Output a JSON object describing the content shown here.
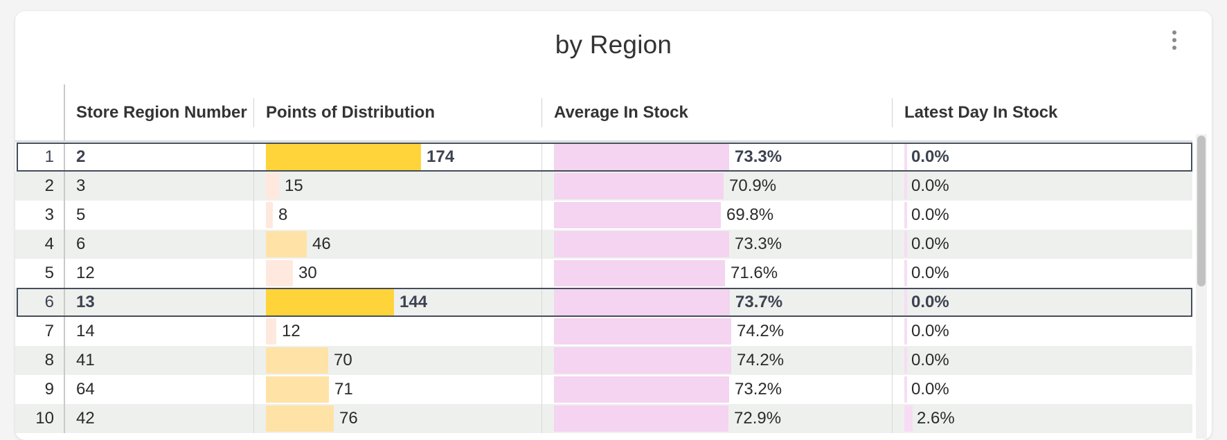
{
  "title": "by Region",
  "columns": {
    "region": "Store Region Number",
    "pod": "Points of Distribution",
    "avg": "Average In Stock",
    "latest": "Latest Day In Stock"
  },
  "colors": {
    "pod_high": "#ffd43b",
    "pod_mid": "#ffe2a6",
    "pod_low": "#ffe9df",
    "avg_bar": "#f4d4f0",
    "latest_bar": "#f8dcf4",
    "row_alt": "#eef0ee",
    "selection_border": "#454d59"
  },
  "rows": [
    {
      "index": "1",
      "region": "2",
      "pod": "174",
      "pod_value": 174,
      "avg": "73.3%",
      "avg_value": 73.3,
      "latest": "0.0%",
      "latest_value": 0.0,
      "selected": true
    },
    {
      "index": "2",
      "region": "3",
      "pod": "15",
      "pod_value": 15,
      "avg": "70.9%",
      "avg_value": 70.9,
      "latest": "0.0%",
      "latest_value": 0.0
    },
    {
      "index": "3",
      "region": "5",
      "pod": "8",
      "pod_value": 8,
      "avg": "69.8%",
      "avg_value": 69.8,
      "latest": "0.0%",
      "latest_value": 0.0
    },
    {
      "index": "4",
      "region": "6",
      "pod": "46",
      "pod_value": 46,
      "avg": "73.3%",
      "avg_value": 73.3,
      "latest": "0.0%",
      "latest_value": 0.0
    },
    {
      "index": "5",
      "region": "12",
      "pod": "30",
      "pod_value": 30,
      "avg": "71.6%",
      "avg_value": 71.6,
      "latest": "0.0%",
      "latest_value": 0.0
    },
    {
      "index": "6",
      "region": "13",
      "pod": "144",
      "pod_value": 144,
      "avg": "73.7%",
      "avg_value": 73.7,
      "latest": "0.0%",
      "latest_value": 0.0,
      "selected": true
    },
    {
      "index": "7",
      "region": "14",
      "pod": "12",
      "pod_value": 12,
      "avg": "74.2%",
      "avg_value": 74.2,
      "latest": "0.0%",
      "latest_value": 0.0
    },
    {
      "index": "8",
      "region": "41",
      "pod": "70",
      "pod_value": 70,
      "avg": "74.2%",
      "avg_value": 74.2,
      "latest": "0.0%",
      "latest_value": 0.0
    },
    {
      "index": "9",
      "region": "64",
      "pod": "71",
      "pod_value": 71,
      "avg": "73.2%",
      "avg_value": 73.2,
      "latest": "0.0%",
      "latest_value": 0.0
    },
    {
      "index": "10",
      "region": "42",
      "pod": "76",
      "pod_value": 76,
      "avg": "72.9%",
      "avg_value": 72.9,
      "latest": "2.6%",
      "latest_value": 2.6
    }
  ]
}
